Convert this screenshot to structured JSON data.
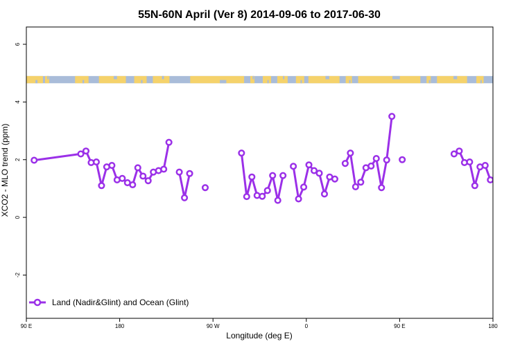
{
  "chart_data": {
    "type": "line",
    "title": "55N-60N April (Ver 8)   2014-09-06 to 2017-06-30",
    "xlabel": "Longitude (deg E)",
    "ylabel": "XCO2 - MLO trend (ppm)",
    "xlim": [
      90,
      540
    ],
    "ylim": [
      -3.5,
      6.6
    ],
    "x_ticks": [
      {
        "value": 90,
        "label": "90 E"
      },
      {
        "value": 180,
        "label": "180"
      },
      {
        "value": 270,
        "label": "90 W"
      },
      {
        "value": 360,
        "label": "0"
      },
      {
        "value": 450,
        "label": "90 E"
      },
      {
        "value": 540,
        "label": "180"
      }
    ],
    "y_ticks": [
      {
        "value": -2,
        "label": "-2"
      },
      {
        "value": 0,
        "label": "0"
      },
      {
        "value": 2,
        "label": "2"
      },
      {
        "value": 4,
        "label": "4"
      },
      {
        "value": 6,
        "label": "6"
      }
    ],
    "legend": {
      "position": "bottom-left"
    },
    "colors": {
      "series": "#9B30E8",
      "land": "#F5D26B",
      "ocean": "#A9BCD9"
    },
    "land_ocean_strip": {
      "description_colors": [
        "land",
        "ocean"
      ],
      "y_range": [
        4.65,
        4.9
      ]
    },
    "series": [
      {
        "name": "Land (Nadir&Glint) and Ocean (Glint)",
        "points": [
          [
            97.5,
            1.98
          ],
          [
            142.5,
            2.2
          ],
          [
            147.5,
            2.3
          ],
          [
            152.5,
            1.9
          ],
          [
            157.5,
            1.92
          ],
          [
            162.5,
            1.1
          ],
          [
            167.5,
            1.75
          ],
          [
            172.5,
            1.8
          ],
          [
            177.5,
            1.3
          ],
          [
            182.5,
            1.35
          ],
          [
            187.5,
            1.2
          ],
          [
            192.5,
            1.13
          ],
          [
            197.5,
            1.72
          ],
          [
            202.5,
            1.43
          ],
          [
            207.5,
            1.27
          ],
          [
            212.5,
            1.57
          ],
          [
            217.5,
            1.62
          ],
          [
            222.5,
            1.67
          ],
          [
            227.5,
            2.6
          ],
          null,
          [
            237.5,
            1.57
          ],
          [
            242.5,
            0.68
          ],
          [
            247.5,
            1.52
          ],
          null,
          [
            262.5,
            1.03
          ],
          null,
          [
            297.5,
            2.23
          ],
          [
            302.5,
            0.72
          ],
          [
            307.5,
            1.4
          ],
          [
            312.5,
            0.76
          ],
          [
            317.5,
            0.73
          ],
          [
            322.5,
            0.93
          ],
          [
            327.5,
            1.45
          ],
          [
            332.5,
            0.59
          ],
          [
            337.5,
            1.45
          ],
          null,
          [
            347.5,
            1.77
          ],
          [
            352.5,
            0.64
          ],
          [
            357.5,
            1.05
          ],
          [
            362.5,
            1.82
          ],
          [
            367.5,
            1.62
          ],
          [
            372.5,
            1.53
          ],
          [
            377.5,
            0.81
          ],
          [
            382.5,
            1.4
          ],
          [
            387.5,
            1.33
          ],
          null,
          [
            397.5,
            1.87
          ],
          [
            402.5,
            2.23
          ],
          [
            407.5,
            1.06
          ],
          [
            412.5,
            1.22
          ],
          [
            417.5,
            1.72
          ],
          [
            422.5,
            1.78
          ],
          [
            427.5,
            2.04
          ],
          [
            432.5,
            1.03
          ],
          [
            437.5,
            1.99
          ],
          [
            442.5,
            3.5
          ],
          null,
          [
            452.5,
            2.0
          ],
          null,
          [
            502.5,
            2.2
          ],
          [
            507.5,
            2.3
          ],
          [
            512.5,
            1.9
          ],
          [
            517.5,
            1.92
          ],
          [
            522.5,
            1.1
          ],
          [
            527.5,
            1.75
          ],
          [
            532.5,
            1.8
          ],
          [
            537.5,
            1.3
          ]
        ]
      }
    ]
  }
}
